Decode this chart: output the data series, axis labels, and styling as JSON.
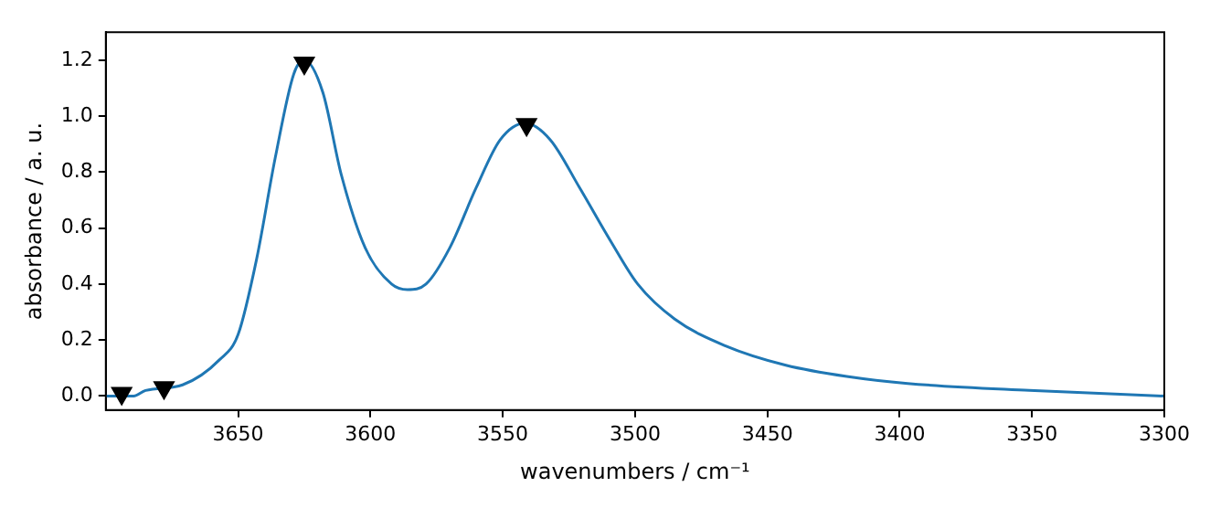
{
  "chart_data": {
    "type": "line",
    "xlabel": "wavenumbers / cm⁻¹",
    "ylabel": "absorbance / a. u.",
    "xlim": [
      3700,
      3300
    ],
    "xticks": [
      3650,
      3600,
      3550,
      3500,
      3450,
      3400,
      3350,
      3300
    ],
    "ylim": [
      -0.05,
      1.3
    ],
    "yticks": [
      {
        "value": 0,
        "label": "0.0"
      },
      0.2,
      0.4,
      0.6,
      0.8,
      {
        "value": 1,
        "label": "1.0"
      },
      1.2
    ],
    "grid": false,
    "legend": false,
    "series": [
      {
        "color": "#1f77b4",
        "marker": "none",
        "x": [
          3700,
          3689.5,
          3685,
          3671,
          3657,
          3650,
          3643,
          3636,
          3629,
          3625,
          3618,
          3611,
          3602,
          3592,
          3586,
          3579,
          3570,
          3560,
          3551,
          3541.5,
          3532,
          3521,
          3509,
          3499,
          3485,
          3466,
          3443,
          3420,
          3397,
          3351,
          3300
        ],
        "values": [
          0,
          0,
          0.02,
          0.04,
          0.13,
          0.22,
          0.49,
          0.85,
          1.15,
          1.2,
          1.085,
          0.79,
          0.53,
          0.4,
          0.38,
          0.4,
          0.53,
          0.745,
          0.915,
          0.975,
          0.915,
          0.745,
          0.55,
          0.4,
          0.275,
          0.18,
          0.11,
          0.07,
          0.045,
          0.02,
          0
        ]
      },
      {
        "type": "scatter",
        "color": "#000000",
        "marker": "triangle",
        "x": [
          3694,
          3678,
          3625,
          3541
        ],
        "values": [
          0.01,
          0.03,
          1.19,
          0.97
        ]
      }
    ]
  }
}
